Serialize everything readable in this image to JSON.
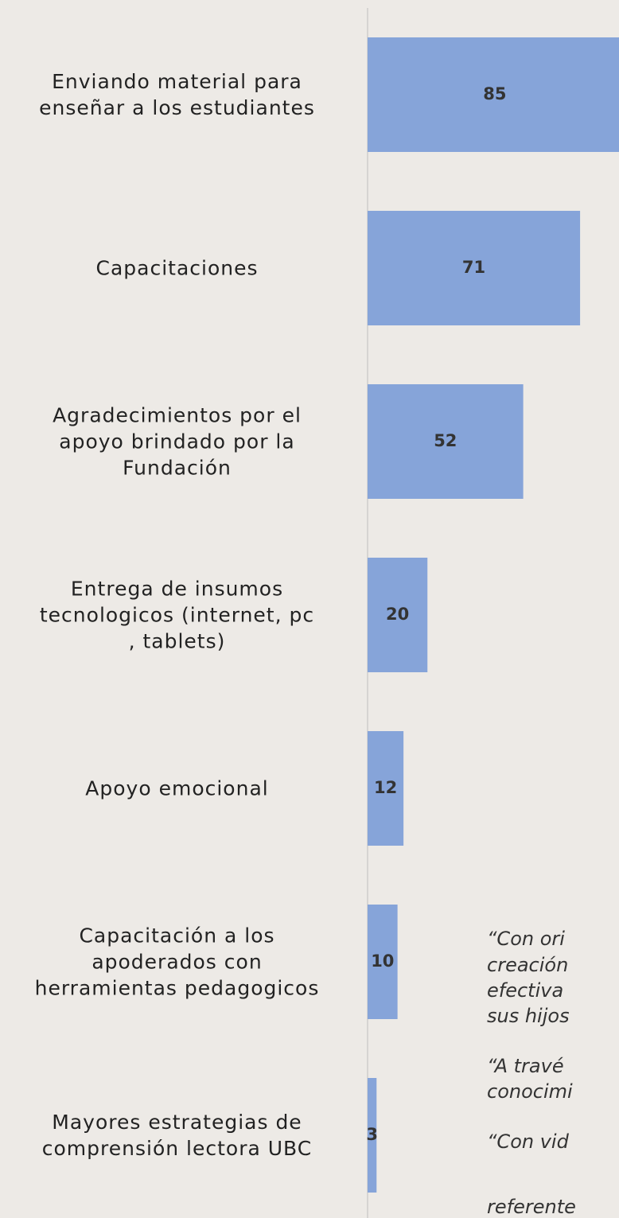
{
  "chart_data": {
    "type": "barh",
    "categories": [
      "Enviando material para\nenseñar a los estudiantes",
      "Capacitaciones",
      "Agradecimientos por el\napoyo brindado por la\nFundación",
      "Entrega de insumos\ntecnologicos (internet, pc\n, tablets)",
      "Apoyo emocional",
      "Capacitación a los\napoderados con\nherramientas pedagogicos",
      "Mayores estrategias de\ncomprensión lectora UBC"
    ],
    "values": [
      85,
      71,
      52,
      20,
      12,
      10,
      3
    ],
    "color": "#86a4d9",
    "xlim": [
      0,
      84
    ],
    "annotations": [
      "“Con ori",
      "creación",
      "efectiva",
      "sus hijos",
      "“A travé",
      "conocimi",
      "“Con vid",
      "referente"
    ]
  }
}
